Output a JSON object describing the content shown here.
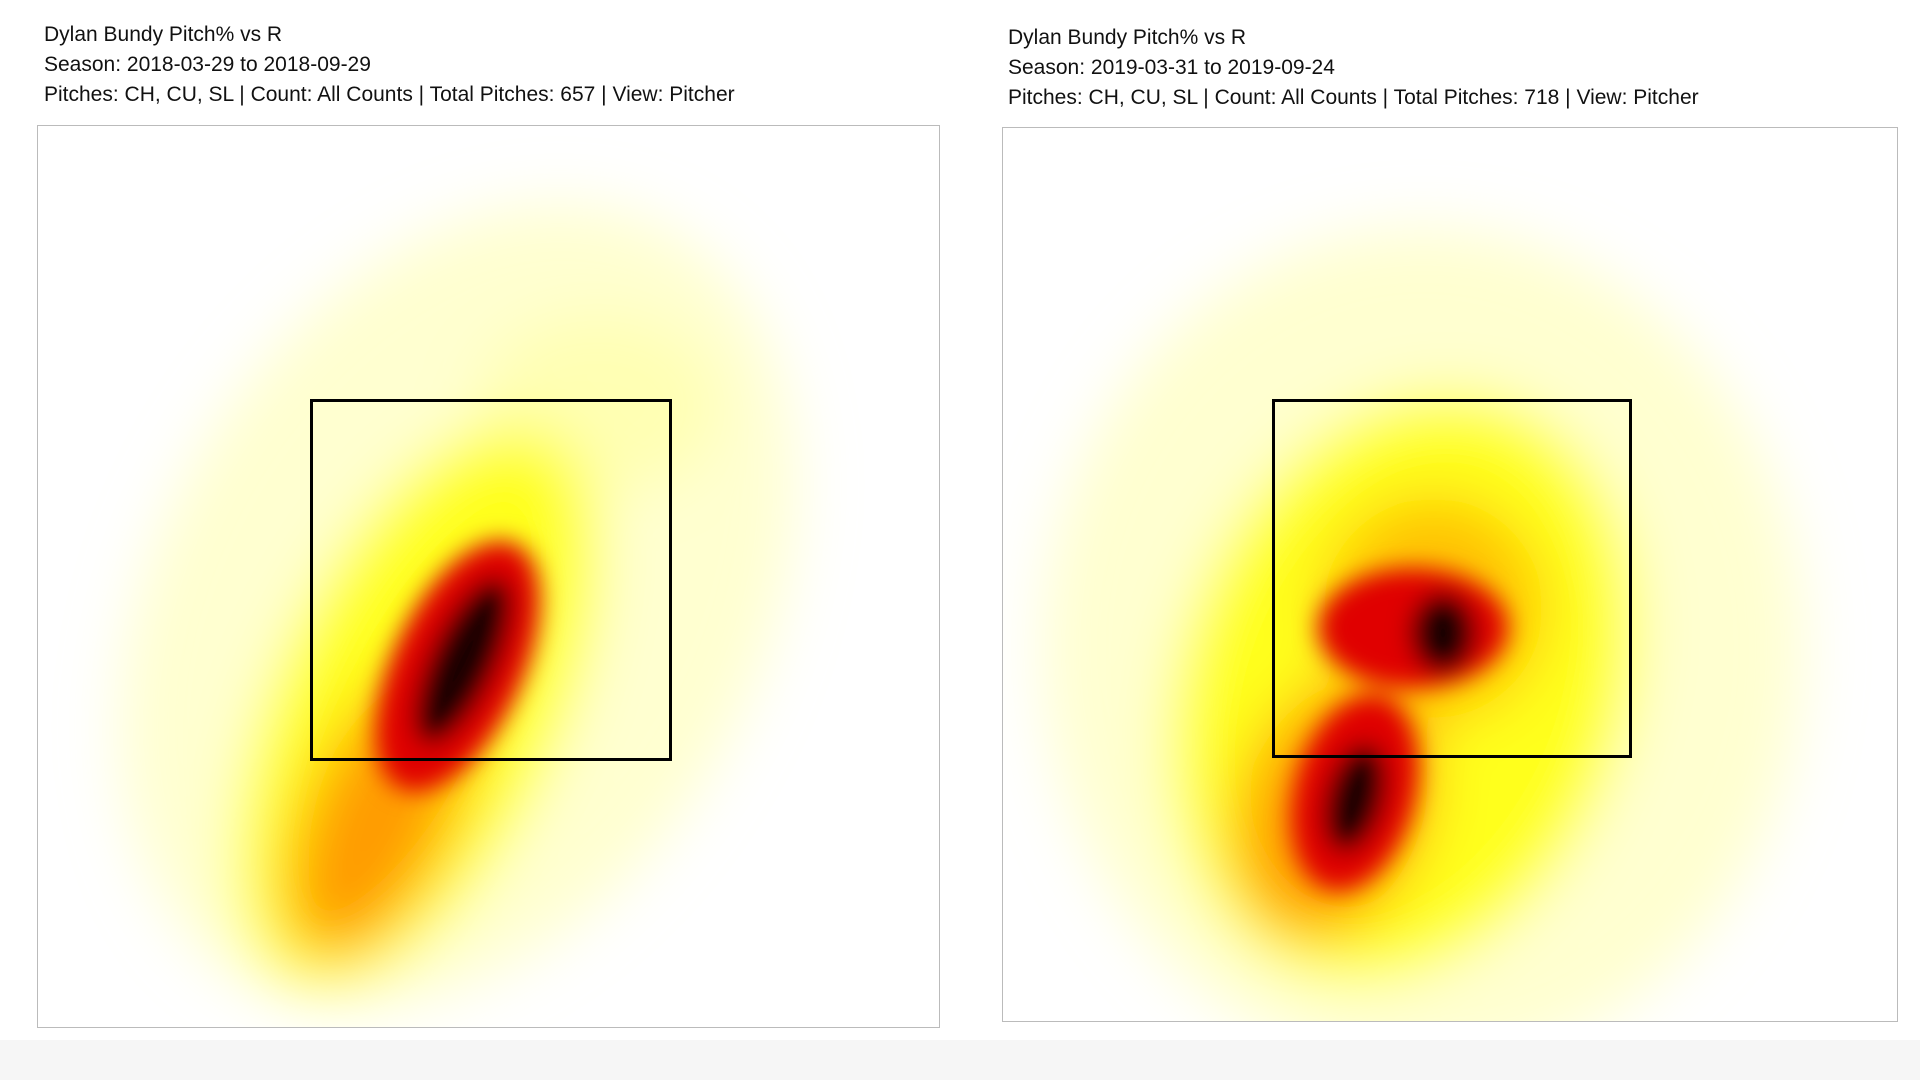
{
  "panels": [
    {
      "title": "Dylan Bundy Pitch% vs R",
      "season": "Season: 2018-03-29 to 2018-09-29",
      "details": "Pitches: CH, CU, SL | Count: All Counts | Total Pitches: 657 | View: Pitcher"
    },
    {
      "title": "Dylan Bundy Pitch% vs R",
      "season": "Season: 2019-03-31 to 2019-09-24",
      "details": "Pitches: CH, CU, SL | Count: All Counts | Total Pitches: 718 | View: Pitcher"
    }
  ]
}
